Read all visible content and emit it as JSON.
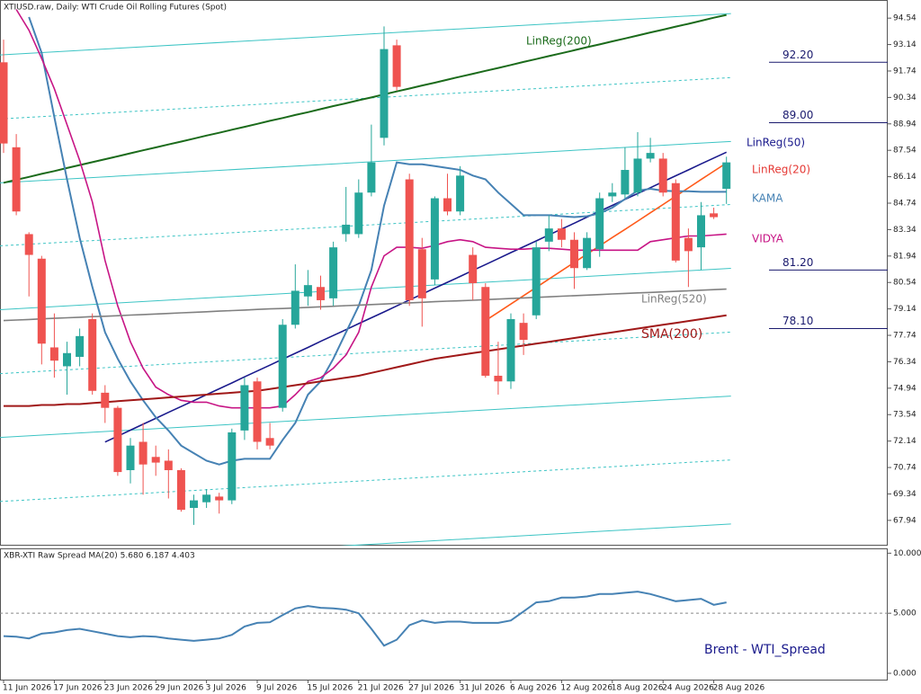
{
  "chart_data": [
    {
      "type": "candlestick",
      "title": "XTIUSD.raw, Daily:  WTI Crude Oil Rolling Futures (Spot)",
      "categories": [
        "11 Jun 2026",
        null,
        null,
        null,
        "17 Jun 2026",
        null,
        null,
        null,
        "23 Jun 2026",
        null,
        null,
        null,
        "29 Jun 2026",
        null,
        null,
        null,
        "3 Jul 2026",
        null,
        null,
        null,
        "9 Jul 2026",
        null,
        null,
        null,
        "15 Jul 2026",
        null,
        null,
        null,
        "21 Jul 2026",
        null,
        null,
        null,
        "27 Jul 2026",
        null,
        null,
        null,
        "31 Jul 2026",
        null,
        null,
        null,
        "6 Aug 2026",
        null,
        null,
        null,
        "12 Aug 2026",
        null,
        null,
        null,
        "18 Aug 2026",
        null,
        null,
        null,
        "24 Aug 2026",
        null,
        null,
        null,
        "28 Aug 2026",
        null
      ],
      "open": [
        92.2,
        87.7,
        83.1,
        81.8,
        77.1,
        76.1,
        76.6,
        78.6,
        74.7,
        73.9,
        70.6,
        72.1,
        71.3,
        71.1,
        70.6,
        68.6,
        68.9,
        69.2,
        69.0,
        72.7,
        75.3,
        72.3,
        73.9,
        78.3,
        79.8,
        80.3,
        79.7,
        83.1,
        83.1,
        85.3,
        88.2,
        93.1,
        86.0,
        82.3,
        80.7,
        85.0,
        84.3,
        82.0,
        80.3,
        75.6,
        75.3,
        78.4,
        78.8,
        82.7,
        83.4,
        82.8,
        81.3,
        82.3,
        85.1,
        85.2,
        85.3,
        87.1,
        87.1,
        85.8,
        82.9,
        82.4,
        84.2,
        85.5
      ],
      "high": [
        93.4,
        88.4,
        83.2,
        81.95,
        78.9,
        77.4,
        78.1,
        78.9,
        75.1,
        74.0,
        72.3,
        73.1,
        71.9,
        71.7,
        70.7,
        69.3,
        69.6,
        69.4,
        72.8,
        75.5,
        75.5,
        73.1,
        78.6,
        81.5,
        81.2,
        80.9,
        82.7,
        85.6,
        86.0,
        88.9,
        94.1,
        93.4,
        86.3,
        82.9,
        85.1,
        86.3,
        86.7,
        82.4,
        80.5,
        77.4,
        78.9,
        78.9,
        82.7,
        84.1,
        83.9,
        83.2,
        83.2,
        85.3,
        85.8,
        87.7,
        88.5,
        88.2,
        87.4,
        86.0,
        83.4,
        84.8,
        84.5,
        87.2
      ],
      "low": [
        87.4,
        84.1,
        79.8,
        76.2,
        75.5,
        74.6,
        76.1,
        74.6,
        73.1,
        70.3,
        69.9,
        69.3,
        70.3,
        69.1,
        68.4,
        67.7,
        68.6,
        68.3,
        68.8,
        72.2,
        71.7,
        71.7,
        73.7,
        78.1,
        79.3,
        79.1,
        79.3,
        82.7,
        82.9,
        85.1,
        87.8,
        90.7,
        79.3,
        78.2,
        80.4,
        84.1,
        84.1,
        79.6,
        75.5,
        74.6,
        74.9,
        76.7,
        78.6,
        82.2,
        82.4,
        80.2,
        81.2,
        81.9,
        84.8,
        85.0,
        85.1,
        86.9,
        85.1,
        81.6,
        80.3,
        81.2,
        83.9,
        84.7
      ],
      "close": [
        87.9,
        84.3,
        82.0,
        77.3,
        76.4,
        76.8,
        77.7,
        74.8,
        73.9,
        70.5,
        71.9,
        70.9,
        71.0,
        70.6,
        68.5,
        69.0,
        69.3,
        69.0,
        72.6,
        75.1,
        72.1,
        71.9,
        78.3,
        80.1,
        80.4,
        79.6,
        82.4,
        83.6,
        85.3,
        86.9,
        92.9,
        90.9,
        79.6,
        79.7,
        85.0,
        84.3,
        86.2,
        80.5,
        75.6,
        75.3,
        78.6,
        77.5,
        82.4,
        83.4,
        82.8,
        81.3,
        82.9,
        85.0,
        85.3,
        86.5,
        87.1,
        87.4,
        85.3,
        81.7,
        82.2,
        84.1,
        84.0,
        86.9
      ],
      "up_color": "#26a69a",
      "down_color": "#ef5350",
      "ylim": [
        66.6,
        95.5
      ],
      "yticks": [
        94.54,
        93.14,
        91.74,
        90.34,
        88.94,
        87.54,
        86.14,
        84.74,
        83.34,
        81.94,
        80.54,
        79.14,
        77.74,
        76.34,
        74.94,
        73.54,
        72.14,
        70.74,
        69.34,
        67.94
      ],
      "series": [
        {
          "name": "LinReg(200)",
          "color": "#1b6b1b",
          "values": [
            85.82,
            85.98,
            86.13,
            86.29,
            86.44,
            86.6,
            86.76,
            86.91,
            87.07,
            87.22,
            87.38,
            87.54,
            87.69,
            87.85,
            88.0,
            88.16,
            88.32,
            88.47,
            88.63,
            88.78,
            88.94,
            89.1,
            89.25,
            89.41,
            89.56,
            89.72,
            89.88,
            90.03,
            90.19,
            90.34,
            90.5,
            90.66,
            90.81,
            90.97,
            91.12,
            91.28,
            91.44,
            91.59,
            91.75,
            91.9,
            92.06,
            92.22,
            92.37,
            92.53,
            92.68,
            92.84,
            93.0,
            93.15,
            93.31,
            93.46,
            93.62,
            93.78,
            93.93,
            94.09,
            94.24,
            94.4,
            94.56,
            94.71
          ]
        },
        {
          "name": "LinReg(50)",
          "color": "#1a1a8c",
          "values": [
            null,
            null,
            null,
            null,
            null,
            null,
            null,
            null,
            72.09,
            72.4,
            72.72,
            73.03,
            73.34,
            73.66,
            73.97,
            74.28,
            74.6,
            74.91,
            75.22,
            75.54,
            75.85,
            76.16,
            76.48,
            76.79,
            77.1,
            77.42,
            77.73,
            78.04,
            78.36,
            78.67,
            78.98,
            79.3,
            79.61,
            79.92,
            80.24,
            80.55,
            80.86,
            81.18,
            81.49,
            81.8,
            82.12,
            82.43,
            82.74,
            83.06,
            83.37,
            83.68,
            84.0,
            84.31,
            84.62,
            84.94,
            85.25,
            85.56,
            85.88,
            86.19,
            86.5,
            86.82,
            87.13,
            87.44
          ]
        },
        {
          "name": "LinReg(20)",
          "color": "#ff5a1a",
          "values": [
            null,
            null,
            null,
            null,
            null,
            null,
            null,
            null,
            null,
            null,
            null,
            null,
            null,
            null,
            null,
            null,
            null,
            null,
            null,
            null,
            null,
            null,
            null,
            null,
            null,
            null,
            null,
            null,
            null,
            null,
            null,
            null,
            null,
            null,
            null,
            null,
            null,
            null,
            78.52,
            78.96,
            79.4,
            79.84,
            80.28,
            80.72,
            81.16,
            81.6,
            82.04,
            82.48,
            82.92,
            83.35,
            83.79,
            84.23,
            84.67,
            85.11,
            85.55,
            85.99,
            86.43,
            86.87
          ]
        },
        {
          "name": "KAMA",
          "color": "#4682b4",
          "values": [
            null,
            null,
            94.6,
            92.7,
            89.3,
            86.0,
            82.9,
            80.3,
            77.9,
            76.5,
            75.3,
            74.3,
            73.4,
            72.7,
            71.9,
            71.5,
            71.1,
            70.9,
            71.1,
            71.2,
            71.2,
            71.2,
            72.2,
            73.1,
            74.6,
            75.3,
            76.5,
            77.9,
            79.3,
            81.2,
            84.6,
            86.9,
            86.8,
            86.8,
            86.7,
            86.6,
            86.5,
            86.2,
            86.0,
            85.3,
            84.7,
            84.1,
            84.1,
            84.1,
            84.05,
            84.0,
            84.05,
            84.2,
            84.5,
            84.96,
            85.4,
            85.5,
            85.4,
            85.37,
            85.37,
            85.34,
            85.34,
            85.34
          ]
        },
        {
          "name": "VIDYA",
          "color": "#c71585",
          "values": [
            null,
            95.0,
            93.9,
            92.4,
            90.8,
            88.9,
            87.0,
            84.8,
            81.7,
            79.3,
            77.4,
            76.0,
            75.0,
            74.6,
            74.3,
            74.2,
            74.2,
            74.0,
            73.9,
            73.9,
            73.9,
            73.9,
            74.0,
            74.6,
            75.3,
            75.5,
            76.0,
            76.7,
            77.9,
            80.3,
            81.95,
            82.4,
            82.4,
            82.35,
            82.5,
            82.7,
            82.8,
            82.7,
            82.4,
            82.35,
            82.3,
            82.3,
            82.35,
            82.35,
            82.3,
            82.25,
            82.25,
            82.25,
            82.25,
            82.25,
            82.25,
            82.7,
            82.8,
            82.9,
            83.0,
            83.0,
            83.05,
            83.1
          ]
        },
        {
          "name": "LinReg(520)",
          "color": "#808080",
          "values": [
            78.52,
            78.55,
            78.58,
            78.61,
            78.64,
            78.67,
            78.7,
            78.73,
            78.75,
            78.78,
            78.81,
            78.84,
            78.87,
            78.9,
            78.93,
            78.96,
            78.99,
            79.02,
            79.05,
            79.08,
            79.11,
            79.14,
            79.16,
            79.19,
            79.22,
            79.25,
            79.28,
            79.31,
            79.34,
            79.37,
            79.4,
            79.43,
            79.46,
            79.49,
            79.52,
            79.55,
            79.57,
            79.6,
            79.63,
            79.66,
            79.69,
            79.72,
            79.75,
            79.78,
            79.81,
            79.84,
            79.87,
            79.9,
            79.93,
            79.96,
            79.99,
            80.01,
            80.04,
            80.07,
            80.1,
            80.13,
            80.16,
            80.19
          ]
        },
        {
          "name": "SMA(200)",
          "color": "#a01818",
          "values": [
            74.0,
            74.0,
            74.0,
            74.05,
            74.05,
            74.1,
            74.1,
            74.15,
            74.2,
            74.25,
            74.3,
            74.35,
            74.4,
            74.45,
            74.5,
            74.55,
            74.6,
            74.65,
            74.7,
            74.75,
            74.8,
            74.9,
            75.0,
            75.1,
            75.2,
            75.3,
            75.4,
            75.5,
            75.6,
            75.75,
            75.9,
            76.05,
            76.2,
            76.35,
            76.5,
            76.6,
            76.7,
            76.8,
            76.9,
            77.0,
            77.1,
            77.2,
            77.3,
            77.4,
            77.5,
            77.6,
            77.7,
            77.8,
            77.9,
            78.0,
            78.1,
            78.2,
            78.3,
            78.4,
            78.5,
            78.6,
            78.7,
            78.8
          ]
        }
      ],
      "channels": [
        {
          "values": [
            65.56,
            67.75
          ],
          "dashed": false
        },
        {
          "values": [
            68.94,
            71.14
          ],
          "dashed": true
        },
        {
          "values": [
            72.33,
            74.52
          ],
          "dashed": false
        },
        {
          "values": [
            75.71,
            77.91
          ],
          "dashed": true
        },
        {
          "values": [
            79.1,
            81.29
          ],
          "dashed": false
        },
        {
          "values": [
            82.48,
            84.67
          ],
          "dashed": true
        },
        {
          "values": [
            85.82,
            88.01
          ],
          "dashed": false
        },
        {
          "values": [
            89.2,
            91.39
          ],
          "dashed": true
        },
        {
          "values": [
            92.59,
            94.78
          ],
          "dashed": false
        }
      ],
      "channel_color": "#3cc4c4",
      "levels": [
        {
          "value": 92.2,
          "label": "92.20"
        },
        {
          "value": 89.0,
          "label": "89.00"
        },
        {
          "value": 81.2,
          "label": "81.20"
        },
        {
          "value": 78.1,
          "label": "78.10"
        }
      ],
      "level_color": "#1a1a6e"
    },
    {
      "type": "line",
      "title": "XBR-XTI Raw Spread MA(20) 5.680 6.187 4.403",
      "values": [
        3.1,
        3.05,
        2.9,
        3.3,
        3.4,
        3.6,
        3.7,
        3.5,
        3.3,
        3.1,
        3.0,
        3.1,
        3.05,
        2.9,
        2.8,
        2.7,
        2.8,
        2.9,
        3.2,
        3.9,
        4.2,
        4.25,
        4.85,
        5.4,
        5.6,
        5.45,
        5.4,
        5.3,
        5.0,
        3.7,
        2.3,
        2.8,
        4.0,
        4.4,
        4.2,
        4.3,
        4.3,
        4.2,
        4.2,
        4.2,
        4.4,
        5.15,
        5.9,
        6.0,
        6.3,
        6.3,
        6.4,
        6.6,
        6.6,
        6.7,
        6.8,
        6.6,
        6.3,
        6.0,
        6.1,
        6.2,
        5.7,
        5.9
      ],
      "color": "#4682b4",
      "ylim": [
        -0.6,
        10.4
      ],
      "yticks": [
        {
          "value": 10,
          "label": "10.000"
        },
        {
          "value": 5,
          "label": "5.000"
        },
        {
          "value": 0,
          "label": "0.000"
        }
      ],
      "reference_line": 5,
      "annotation": "Brent - WTI_Spread"
    }
  ]
}
